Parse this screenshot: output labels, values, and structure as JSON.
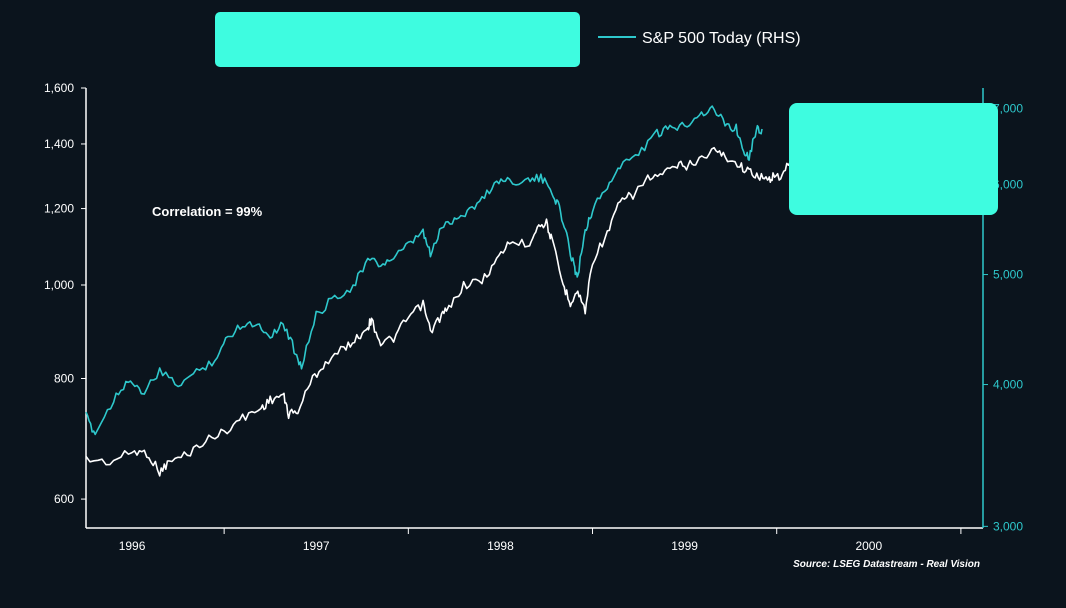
{
  "colors": {
    "background": "#0b141d",
    "white_series": "#ffffff",
    "teal_series": "#2ec8cc",
    "right_axis": "#2ec8cc",
    "legend_box_fill": "#3efce0"
  },
  "legend": {
    "label": "S&P 500 Today (RHS)"
  },
  "annotation": "Correlation = 99%",
  "source": "Source: LSEG Datastream - Real Vision",
  "chart_data": {
    "type": "line",
    "x": {
      "scale": "time",
      "range": [
        1995.55,
        2000.42
      ],
      "ticks": [
        1996,
        1997,
        1998,
        1999,
        2000
      ],
      "tick_labels": [
        "1996",
        "1997",
        "1998",
        "1999",
        "2000"
      ]
    },
    "y_left": {
      "scale": "log",
      "range": [
        560,
        1600
      ],
      "ticks": [
        600,
        800,
        1000,
        1200,
        1400,
        1600
      ],
      "tick_labels": [
        "600",
        "800",
        "1,000",
        "1,200",
        "1,400",
        "1,600"
      ]
    },
    "y_right": {
      "scale": "log",
      "range": [
        2990,
        7300
      ],
      "ticks": [
        3000,
        4000,
        5000,
        6000,
        7000
      ],
      "tick_labels": [
        "3,000",
        "4,000",
        "5,000",
        "6,000",
        "7,000"
      ]
    },
    "grid": false,
    "legend_position": "top",
    "series": [
      {
        "axis": "left",
        "color": "white",
        "points": [
          [
            1995.55,
            660
          ],
          [
            1995.68,
            655
          ],
          [
            1995.8,
            672
          ],
          [
            1995.88,
            670
          ],
          [
            1995.95,
            640
          ],
          [
            1996.0,
            655
          ],
          [
            1996.1,
            668
          ],
          [
            1996.2,
            690
          ],
          [
            1996.3,
            705
          ],
          [
            1996.4,
            728
          ],
          [
            1996.5,
            745
          ],
          [
            1996.55,
            760
          ],
          [
            1996.62,
            770
          ],
          [
            1996.65,
            735
          ],
          [
            1996.7,
            740
          ],
          [
            1996.78,
            800
          ],
          [
            1996.85,
            830
          ],
          [
            1996.95,
            860
          ],
          [
            1997.02,
            880
          ],
          [
            1997.08,
            905
          ],
          [
            1997.1,
            920
          ],
          [
            1997.15,
            870
          ],
          [
            1997.22,
            880
          ],
          [
            1997.3,
            925
          ],
          [
            1997.38,
            955
          ],
          [
            1997.42,
            895
          ],
          [
            1997.48,
            930
          ],
          [
            1997.52,
            945
          ],
          [
            1997.6,
            1000
          ],
          [
            1997.7,
            1010
          ],
          [
            1997.78,
            1060
          ],
          [
            1997.85,
            1110
          ],
          [
            1997.95,
            1100
          ],
          [
            1998.0,
            1150
          ],
          [
            1998.05,
            1160
          ],
          [
            1998.08,
            1110
          ],
          [
            1998.14,
            1000
          ],
          [
            1998.18,
            960
          ],
          [
            1998.22,
            985
          ],
          [
            1998.26,
            940
          ],
          [
            1998.3,
            1060
          ],
          [
            1998.38,
            1130
          ],
          [
            1998.45,
            1220
          ],
          [
            1998.52,
            1240
          ],
          [
            1998.6,
            1290
          ],
          [
            1998.68,
            1300
          ],
          [
            1998.76,
            1330
          ],
          [
            1998.82,
            1330
          ],
          [
            1998.88,
            1350
          ],
          [
            1998.96,
            1380
          ],
          [
            1999.02,
            1360
          ],
          [
            1999.1,
            1330
          ],
          [
            1999.15,
            1310
          ],
          [
            1999.2,
            1300
          ],
          [
            1999.25,
            1280
          ],
          [
            1999.28,
            1300
          ],
          [
            1999.33,
            1290
          ],
          [
            1999.38,
            1360
          ],
          [
            1999.42,
            1385
          ],
          [
            1999.45,
            1410
          ]
        ]
      },
      {
        "axis": "right",
        "color": "teal",
        "points": [
          [
            1995.55,
            3750
          ],
          [
            1995.6,
            3620
          ],
          [
            1995.7,
            3880
          ],
          [
            1995.78,
            4050
          ],
          [
            1995.85,
            3920
          ],
          [
            1995.95,
            4100
          ],
          [
            1996.05,
            4000
          ],
          [
            1996.15,
            4100
          ],
          [
            1996.25,
            4210
          ],
          [
            1996.32,
            4400
          ],
          [
            1996.4,
            4530
          ],
          [
            1996.48,
            4520
          ],
          [
            1996.55,
            4420
          ],
          [
            1996.62,
            4530
          ],
          [
            1996.68,
            4300
          ],
          [
            1996.72,
            4150
          ],
          [
            1996.8,
            4600
          ],
          [
            1996.9,
            4780
          ],
          [
            1997.0,
            4880
          ],
          [
            1997.08,
            5150
          ],
          [
            1997.15,
            5100
          ],
          [
            1997.22,
            5170
          ],
          [
            1997.3,
            5300
          ],
          [
            1997.38,
            5450
          ],
          [
            1997.42,
            5200
          ],
          [
            1997.48,
            5500
          ],
          [
            1997.55,
            5600
          ],
          [
            1997.62,
            5680
          ],
          [
            1997.7,
            5820
          ],
          [
            1997.78,
            6050
          ],
          [
            1997.85,
            6050
          ],
          [
            1997.95,
            6050
          ],
          [
            1998.02,
            6080
          ],
          [
            1998.08,
            5920
          ],
          [
            1998.12,
            5720
          ],
          [
            1998.16,
            5400
          ],
          [
            1998.2,
            5080
          ],
          [
            1998.22,
            4980
          ],
          [
            1998.26,
            5480
          ],
          [
            1998.3,
            5700
          ],
          [
            1998.38,
            5980
          ],
          [
            1998.45,
            6220
          ],
          [
            1998.55,
            6400
          ],
          [
            1998.65,
            6650
          ],
          [
            1998.72,
            6720
          ],
          [
            1998.8,
            6780
          ],
          [
            1998.88,
            6920
          ],
          [
            1998.95,
            7000
          ],
          [
            1999.02,
            6800
          ],
          [
            1999.08,
            6720
          ],
          [
            1999.12,
            6450
          ],
          [
            1999.15,
            6350
          ],
          [
            1999.19,
            6720
          ],
          [
            1999.22,
            6700
          ]
        ]
      }
    ]
  }
}
